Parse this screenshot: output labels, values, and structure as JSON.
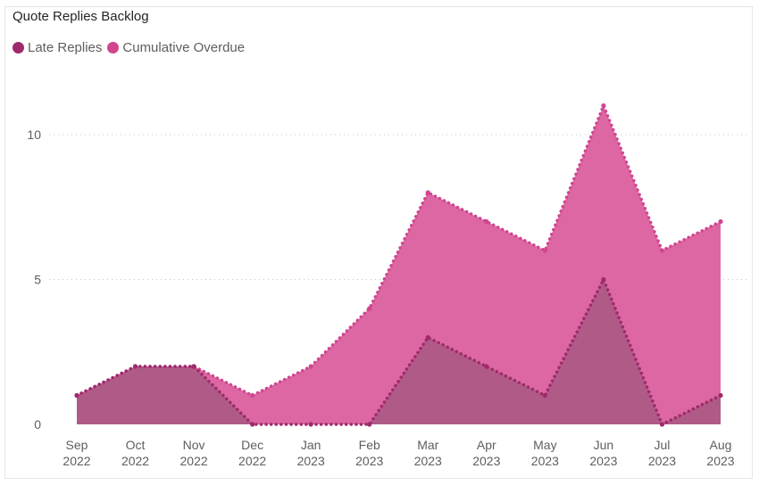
{
  "chart_data": {
    "type": "area",
    "title": "Quote Replies Backlog",
    "categories": [
      [
        "Sep",
        "2022"
      ],
      [
        "Oct",
        "2022"
      ],
      [
        "Nov",
        "2022"
      ],
      [
        "Dec",
        "2022"
      ],
      [
        "Jan",
        "2023"
      ],
      [
        "Feb",
        "2023"
      ],
      [
        "Mar",
        "2023"
      ],
      [
        "Apr",
        "2023"
      ],
      [
        "May",
        "2023"
      ],
      [
        "Jun",
        "2023"
      ],
      [
        "Jul",
        "2023"
      ],
      [
        "Aug",
        "2023"
      ]
    ],
    "series": [
      {
        "name": "Late Replies",
        "color": "#9e2a6b",
        "fill": "#b05a88",
        "values": [
          1,
          2,
          2,
          0,
          0,
          0,
          3,
          2,
          1,
          5,
          0,
          1
        ]
      },
      {
        "name": "Cumulative Overdue",
        "color": "#d1458f",
        "fill": "#dc67a3",
        "values": [
          1,
          2,
          2,
          1,
          2,
          4,
          8,
          7,
          6,
          11,
          6,
          7
        ]
      }
    ],
    "ylim": [
      0,
      12.5
    ],
    "yticks": [
      0,
      5,
      10
    ],
    "grid": true,
    "legend_position": "top-left"
  }
}
